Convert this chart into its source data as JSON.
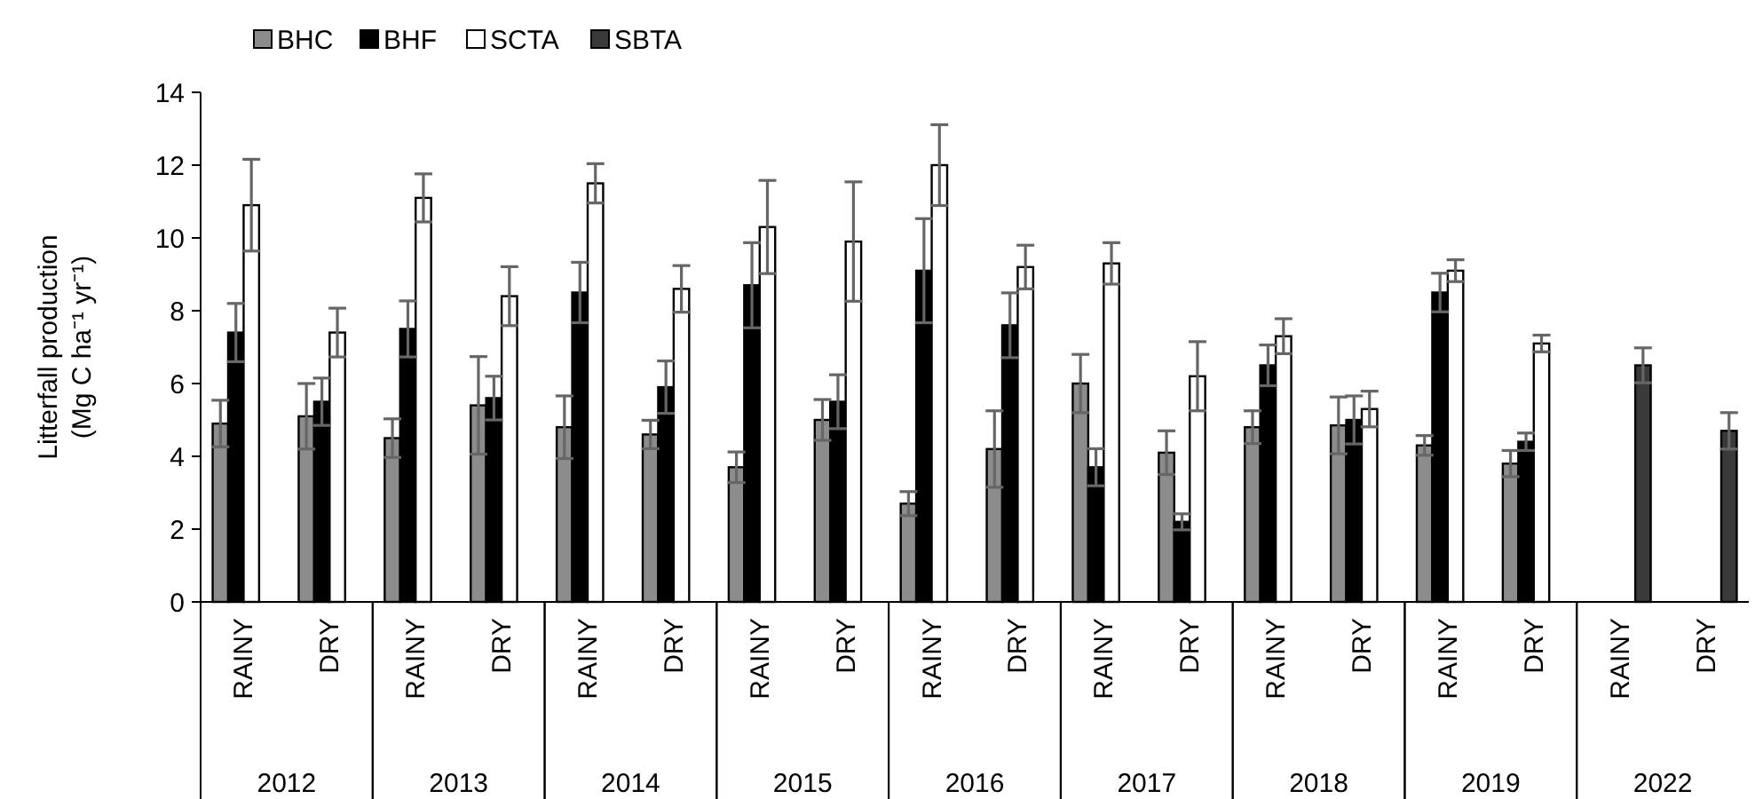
{
  "chart_data": {
    "type": "bar",
    "ylabel": "Litterfall production\n(Mg C ha⁻¹ yr⁻¹)",
    "categories": [
      "RAINY",
      "DRY",
      "RAINY",
      "DRY",
      "RAINY",
      "DRY",
      "RAINY",
      "DRY",
      "RAINY",
      "DRY",
      "RAINY",
      "DRY",
      "RAINY",
      "DRY",
      "RAINY",
      "DRY",
      "RAINY",
      "DRY"
    ],
    "annotations": [
      "2012",
      "2013",
      "2014",
      "2015",
      "2016",
      "2017",
      "2018",
      "2019",
      "2022"
    ],
    "series": [
      {
        "name": "BHC",
        "color": "#8c8c8c",
        "values": [
          4.9,
          5.1,
          4.5,
          5.4,
          4.8,
          4.6,
          3.7,
          5.0,
          2.7,
          4.2,
          6.0,
          4.1,
          4.8,
          4.85,
          4.3,
          3.8,
          null,
          null
        ],
        "errors": [
          0.64,
          0.9,
          0.53,
          1.34,
          0.86,
          0.39,
          0.42,
          0.56,
          0.33,
          1.05,
          0.8,
          0.6,
          0.45,
          0.78,
          0.27,
          0.36,
          null,
          null
        ]
      },
      {
        "name": "BHF",
        "color": "#000000",
        "values": [
          7.4,
          5.5,
          7.5,
          5.6,
          8.5,
          5.9,
          8.7,
          5.5,
          9.1,
          7.6,
          3.7,
          2.2,
          6.5,
          5.0,
          8.5,
          4.4,
          null,
          null
        ],
        "errors": [
          0.8,
          0.65,
          0.77,
          0.6,
          0.83,
          0.72,
          1.17,
          0.74,
          1.43,
          0.89,
          0.51,
          0.22,
          0.56,
          0.66,
          0.53,
          0.24,
          null,
          null
        ]
      },
      {
        "name": "SCTA",
        "color": "#ffffff",
        "values": [
          10.9,
          7.4,
          11.1,
          8.4,
          11.5,
          8.6,
          10.3,
          9.9,
          12.0,
          9.2,
          9.3,
          6.2,
          7.3,
          5.3,
          9.1,
          7.1,
          null,
          null
        ],
        "errors": [
          1.26,
          0.67,
          0.66,
          0.81,
          0.54,
          0.64,
          1.28,
          1.64,
          1.11,
          0.6,
          0.57,
          0.95,
          0.48,
          0.49,
          0.3,
          0.23,
          null,
          null
        ]
      },
      {
        "name": "SBTA",
        "color": "#3a3a3a",
        "values": [
          null,
          null,
          null,
          null,
          null,
          null,
          null,
          null,
          null,
          null,
          null,
          null,
          null,
          null,
          null,
          null,
          6.5,
          4.7
        ],
        "errors": [
          null,
          null,
          null,
          null,
          null,
          null,
          null,
          null,
          null,
          null,
          null,
          null,
          null,
          null,
          null,
          null,
          0.48,
          0.5
        ]
      }
    ],
    "ylim": [
      0,
      14
    ],
    "yticks": [
      0,
      2,
      4,
      6,
      8,
      10,
      12,
      14
    ],
    "legend": "top left"
  }
}
